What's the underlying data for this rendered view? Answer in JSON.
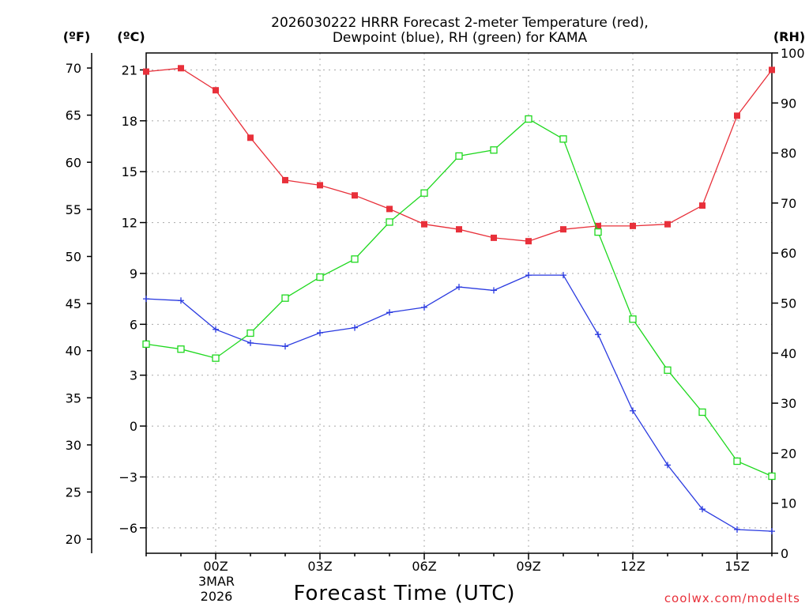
{
  "chart_data": {
    "type": "line",
    "title_line1": "2026030222 HRRR Forecast 2-meter Temperature (red),",
    "title_line2": "Dewpoint (blue), RH (green) for KAMA",
    "xlabel": "Forecast Time (UTC)",
    "credit": "coolwx.com/modelts",
    "date_label": [
      "3MAR",
      "2026"
    ],
    "x_range_hours": [
      -2,
      16
    ],
    "x_ticks": [
      {
        "hour": 0,
        "label": "00Z"
      },
      {
        "hour": 3,
        "label": "03Z"
      },
      {
        "hour": 6,
        "label": "06Z"
      },
      {
        "hour": 9,
        "label": "09Z"
      },
      {
        "hour": 12,
        "label": "12Z"
      },
      {
        "hour": 15,
        "label": "15Z"
      }
    ],
    "left_axis_f": {
      "unit": "(ºF)",
      "ticks": [
        "70",
        "65",
        "60",
        "55",
        "50",
        "45",
        "40",
        "35",
        "30",
        "25",
        "20"
      ],
      "values": [
        70,
        65,
        60,
        55,
        50,
        45,
        40,
        35,
        30,
        25,
        20
      ]
    },
    "left_axis_c": {
      "unit": "(ºC)",
      "ticks": [
        "21",
        "18",
        "15",
        "12",
        "9",
        "6",
        "3",
        "0",
        "−3",
        "−6"
      ],
      "values": [
        21,
        18,
        15,
        12,
        9,
        6,
        3,
        0,
        -3,
        -6
      ],
      "range": [
        -7.5,
        22.0
      ]
    },
    "right_axis_rh": {
      "unit": "(RH)",
      "ticks": [
        "100",
        "90",
        "80",
        "70",
        "60",
        "50",
        "40",
        "30",
        "20",
        "10",
        "0"
      ],
      "values": [
        100,
        90,
        80,
        70,
        60,
        50,
        40,
        30,
        20,
        10,
        0
      ],
      "range": [
        0,
        100
      ]
    },
    "hours": [
      -2,
      -1,
      0,
      1,
      2,
      3,
      4,
      5,
      6,
      7,
      8,
      9,
      10,
      11,
      12,
      13,
      14,
      15,
      16
    ],
    "series": [
      {
        "name": "Temperature",
        "unit": "C",
        "color": "#e8303a",
        "marker": "filled-square",
        "values": [
          20.9,
          21.1,
          19.8,
          17.0,
          14.5,
          14.2,
          13.6,
          12.8,
          11.9,
          11.6,
          11.1,
          10.9,
          11.6,
          11.8,
          11.8,
          11.9,
          13.0,
          18.3,
          21.0
        ]
      },
      {
        "name": "Dewpoint",
        "unit": "C",
        "color": "#2a3ae0",
        "marker": "plus",
        "values": [
          7.5,
          7.4,
          5.7,
          4.9,
          4.7,
          5.5,
          5.8,
          6.7,
          7.0,
          8.2,
          8.0,
          8.9,
          8.9,
          5.4,
          0.9,
          -2.3,
          -4.9,
          -6.1,
          -6.2
        ]
      },
      {
        "name": "RH",
        "unit": "%",
        "color": "#1ed81e",
        "marker": "open-square",
        "values": [
          41.8,
          40.8,
          39.0,
          44.0,
          51.0,
          55.2,
          58.8,
          66.2,
          72.0,
          79.4,
          80.6,
          86.8,
          82.8,
          64.2,
          46.8,
          36.6,
          28.2,
          18.4,
          15.4
        ]
      }
    ]
  }
}
